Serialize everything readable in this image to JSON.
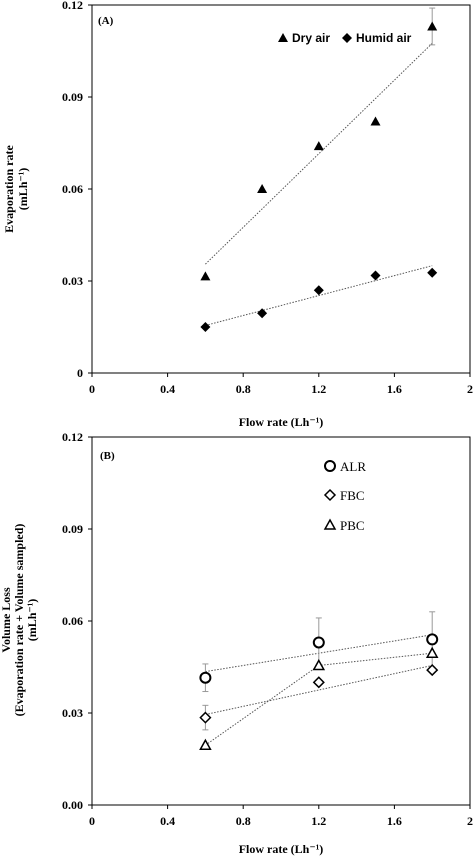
{
  "chart_data": [
    {
      "type": "scatter",
      "panel_label": "(A)",
      "xlabel": "Flow rate (Lh⁻¹)",
      "ylabel": [
        "Evaporation rate",
        "(mLh⁻¹)"
      ],
      "xlim": [
        0,
        2
      ],
      "ylim": [
        0,
        0.12
      ],
      "xticks": [
        "0",
        "0.4",
        "0.8",
        "1.2",
        "1.6",
        "2"
      ],
      "yticks": [
        "0",
        "0.03",
        "0.06",
        "0.09",
        "0.12"
      ],
      "grid": false,
      "legend_position": "top",
      "series": [
        {
          "name": "Dry air",
          "marker": "filled-triangle",
          "x": [
            0.6,
            0.9,
            1.2,
            1.5,
            1.8
          ],
          "y": [
            0.0315,
            0.06,
            0.074,
            0.082,
            0.113
          ],
          "error": [
            0,
            0,
            0,
            0,
            0.006
          ],
          "trendline": {
            "x": [
              0.6,
              1.8
            ],
            "y": [
              0.0355,
              0.1075
            ]
          }
        },
        {
          "name": "Humid air",
          "marker": "filled-diamond",
          "x": [
            0.6,
            0.9,
            1.2,
            1.5,
            1.8
          ],
          "y": [
            0.015,
            0.0195,
            0.027,
            0.0318,
            0.0327
          ],
          "error": [
            0,
            0,
            0,
            0,
            0
          ],
          "trendline": {
            "x": [
              0.6,
              1.8
            ],
            "y": [
              0.0155,
              0.035
            ]
          }
        }
      ]
    },
    {
      "type": "scatter",
      "panel_label": "(B)",
      "xlabel": "Flow rate (Lh⁻¹)",
      "ylabel": [
        "Volume Loss",
        "(Evaporation rate + Volume sampled)",
        "(mLh⁻¹)"
      ],
      "xlim": [
        0,
        2
      ],
      "ylim": [
        0,
        0.12
      ],
      "xticks": [
        "0",
        "0.4",
        "0.8",
        "1.2",
        "1.6",
        "2"
      ],
      "yticks": [
        "0.00",
        "0.03",
        "0.06",
        "0.09",
        "0.12"
      ],
      "grid": false,
      "legend_position": "top-right",
      "series": [
        {
          "name": "ALR",
          "marker": "open-circle",
          "x": [
            0.6,
            1.2,
            1.8
          ],
          "y": [
            0.0415,
            0.053,
            0.054
          ],
          "error": [
            0.0045,
            0.008,
            0.009
          ],
          "trendline": {
            "x": [
              0.6,
              1.8
            ],
            "y": [
              0.0435,
              0.0555
            ]
          }
        },
        {
          "name": "FBC",
          "marker": "open-diamond",
          "x": [
            0.6,
            1.2,
            1.8
          ],
          "y": [
            0.0285,
            0.04,
            0.044
          ],
          "error": [
            0.004,
            0,
            0
          ],
          "trendline": {
            "x": [
              0.6,
              1.8
            ],
            "y": [
              0.0295,
              0.0455
            ]
          }
        },
        {
          "name": "PBC",
          "marker": "open-triangle",
          "x": [
            0.6,
            1.2,
            1.8
          ],
          "y": [
            0.0195,
            0.0455,
            0.0495
          ],
          "error": [
            0,
            0,
            0
          ],
          "trendline": {
            "x": [
              0.6,
              1.2,
              1.8
            ],
            "y": [
              0.0195,
              0.0455,
              0.0495
            ]
          }
        }
      ]
    }
  ]
}
